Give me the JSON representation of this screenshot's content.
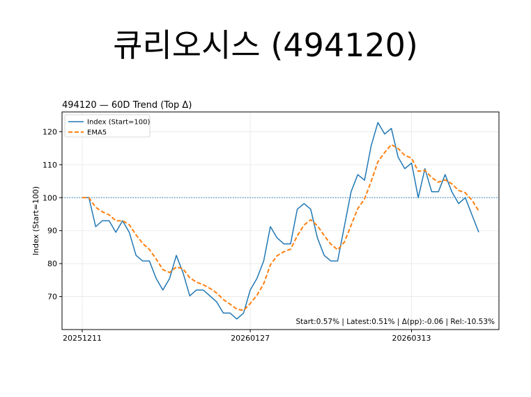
{
  "page": {
    "title": "큐리오시스 (494120)"
  },
  "chart_data": {
    "type": "line",
    "title": "494120 — 60D Trend (Top Δ)",
    "xlabel": "",
    "ylabel": "Index (Start=100)",
    "ylim": [
      60.0,
      126.0
    ],
    "yticks": [
      70,
      80,
      90,
      100,
      110,
      120
    ],
    "xticks": [
      {
        "index": 0,
        "label": "20251211"
      },
      {
        "index": 25,
        "label": "20260127"
      },
      {
        "index": 49,
        "label": "20260313"
      }
    ],
    "reference_line": 100,
    "grid": true,
    "legend_position": "top-left",
    "annotation": "Start:0.57% | Latest:0.51% | Δ(pp):-0.06 | Rel:-10.53%",
    "series": [
      {
        "name": "Index (Start=100)",
        "color": "#1f77b4",
        "style": "solid",
        "values": [
          100.0,
          100.0,
          91.2,
          93.0,
          93.0,
          89.5,
          93.0,
          89.5,
          82.5,
          80.8,
          80.8,
          75.5,
          72.0,
          75.5,
          82.5,
          77.2,
          70.2,
          72.0,
          72.0,
          70.2,
          68.4,
          65.0,
          65.0,
          63.2,
          65.0,
          72.0,
          75.5,
          80.8,
          91.2,
          87.8,
          86.0,
          86.0,
          96.5,
          98.2,
          96.5,
          87.8,
          82.5,
          80.8,
          80.8,
          91.2,
          101.8,
          107.0,
          105.3,
          115.8,
          122.8,
          119.3,
          121.0,
          112.3,
          108.8,
          110.5,
          100.0,
          108.8,
          101.8,
          101.8,
          107.0,
          101.8,
          98.2,
          100.0,
          94.7,
          89.5
        ]
      },
      {
        "name": "EMA5",
        "color": "#ff7f0e",
        "style": "dashed",
        "values": [
          100.0,
          100.0,
          97.1,
          95.7,
          94.8,
          93.0,
          93.0,
          91.8,
          88.7,
          86.1,
          84.3,
          81.4,
          78.2,
          77.3,
          79.0,
          78.4,
          75.7,
          74.4,
          73.6,
          72.5,
          71.1,
          69.1,
          67.7,
          66.2,
          65.8,
          67.9,
          70.4,
          73.9,
          79.6,
          82.4,
          83.6,
          84.4,
          88.4,
          91.7,
          93.3,
          91.5,
          88.5,
          85.9,
          84.2,
          86.5,
          91.6,
          96.7,
          99.6,
          105.0,
          110.9,
          113.7,
          116.1,
          114.9,
          112.8,
          112.0,
          108.0,
          108.3,
          106.1,
          104.7,
          105.4,
          104.2,
          102.2,
          101.5,
          99.2,
          96.0
        ]
      }
    ]
  }
}
